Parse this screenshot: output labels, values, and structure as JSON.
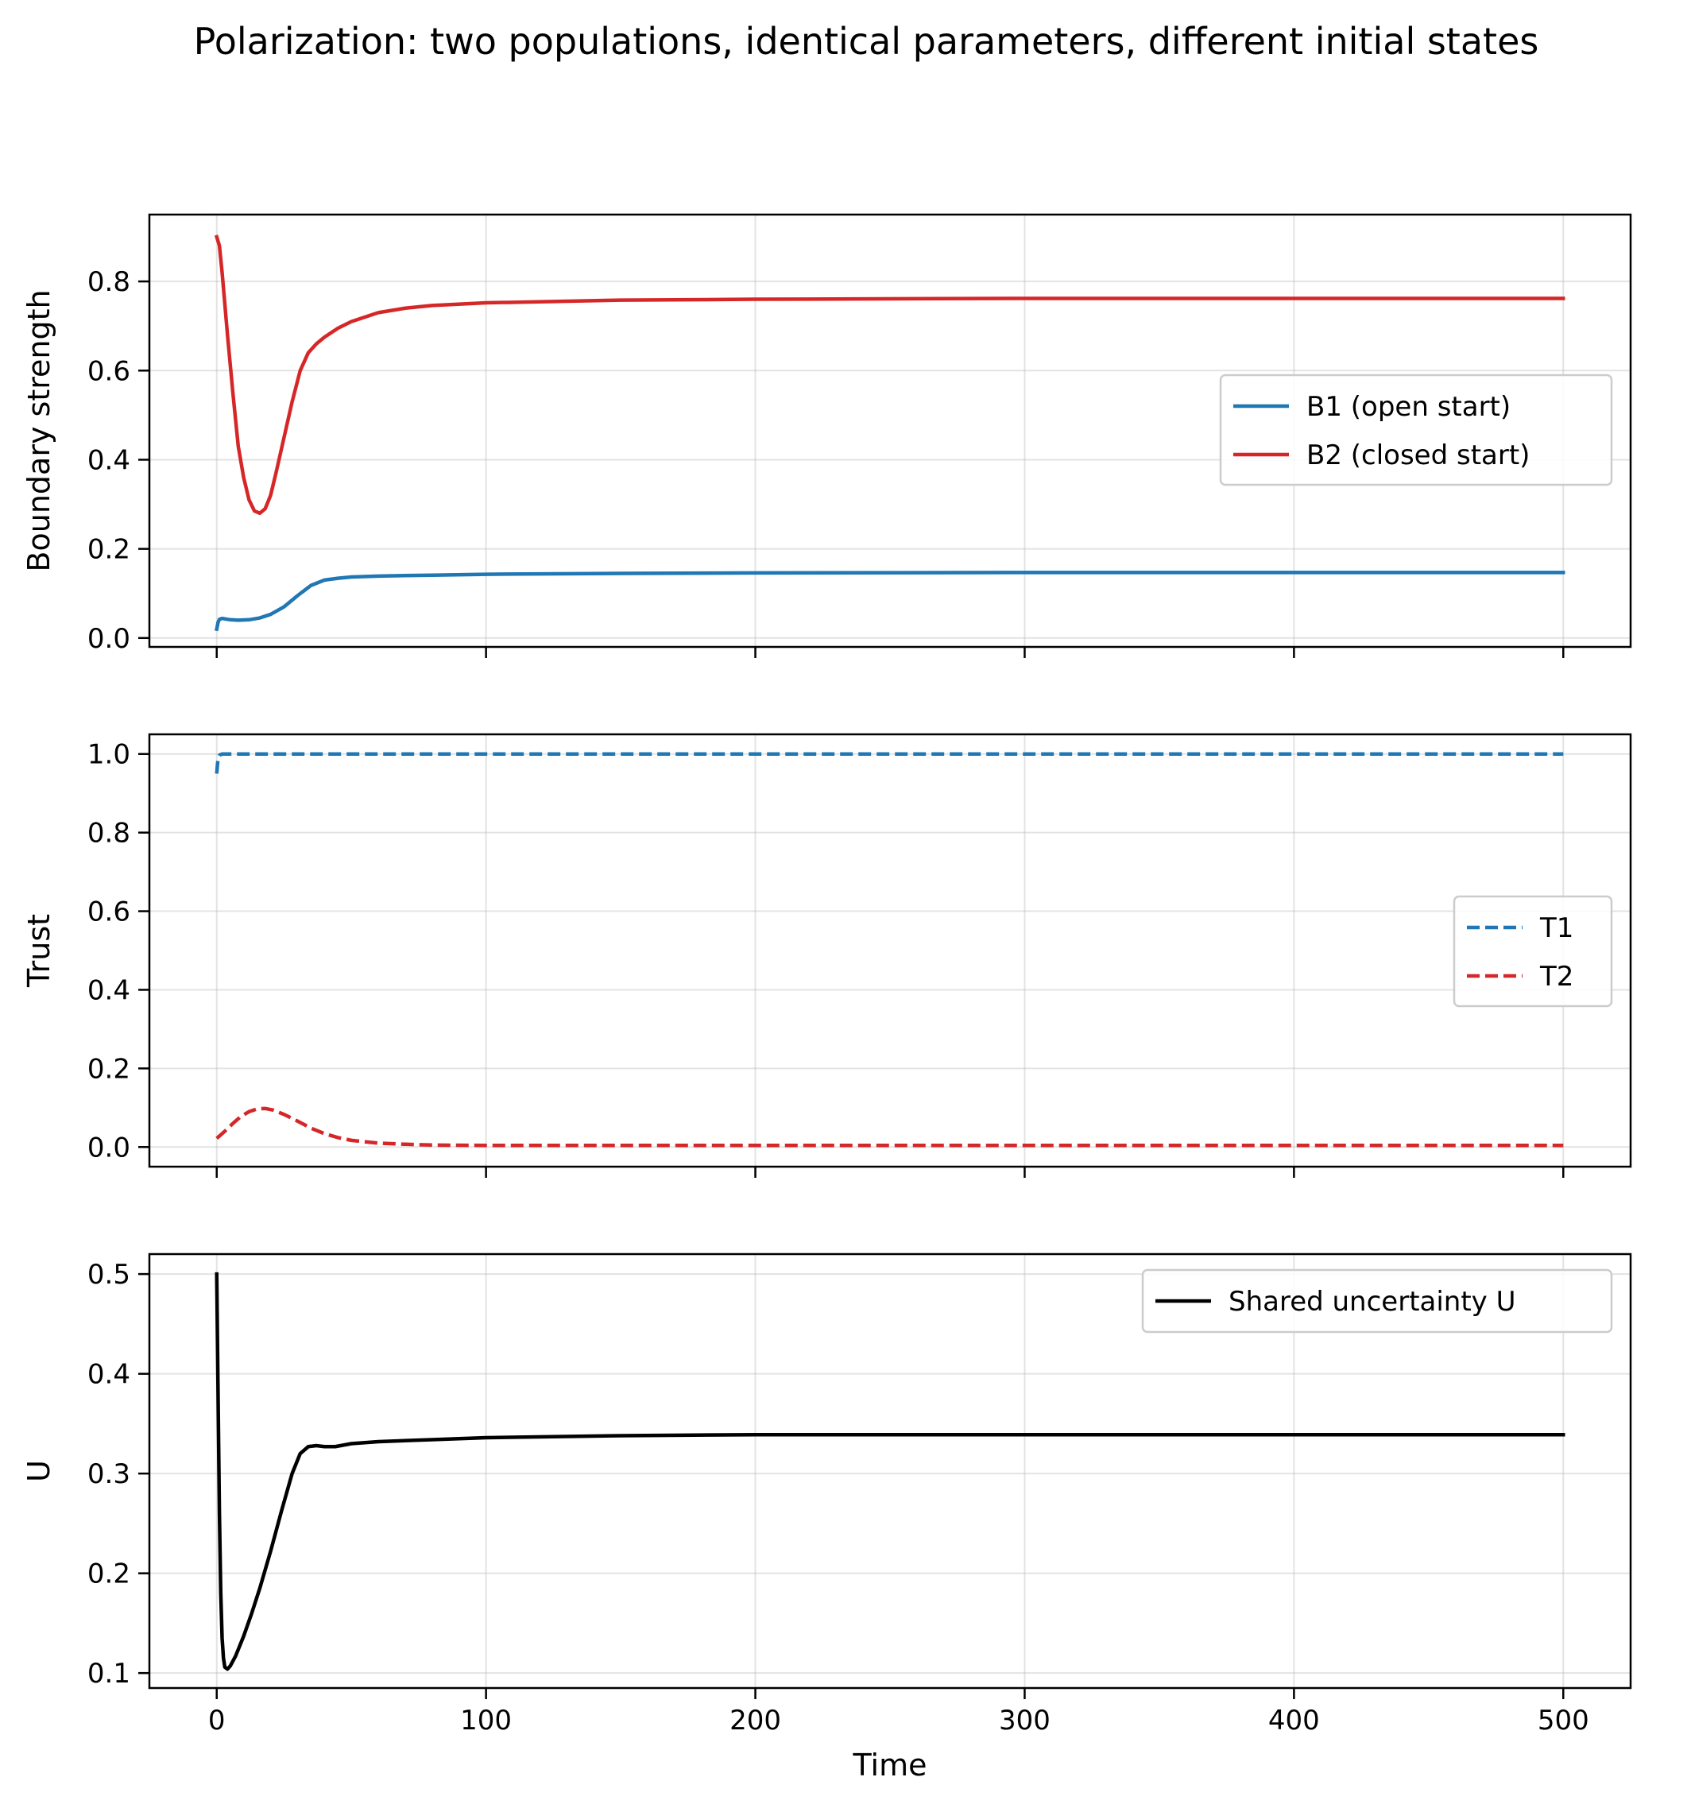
{
  "figure": {
    "title": "Polarization: two populations, identical parameters, different initial states"
  },
  "chart_data": [
    {
      "type": "line",
      "title": "",
      "xlabel": "",
      "ylabel": "Boundary strength",
      "xlim": [
        -25,
        525
      ],
      "ylim": [
        -0.02,
        0.95
      ],
      "xticks": [
        0,
        100,
        200,
        300,
        400,
        500
      ],
      "xtick_labels_visible": false,
      "yticks": [
        0.0,
        0.2,
        0.4,
        0.6,
        0.8
      ],
      "ytick_labels": [
        "0.0",
        "0.2",
        "0.4",
        "0.6",
        "0.8"
      ],
      "grid": true,
      "legend": "center-right",
      "series": [
        {
          "name": "B1 (open start)",
          "color": "#1f77b4",
          "style": "solid",
          "x": [
            0,
            0.5,
            1,
            2,
            3,
            5,
            8,
            12,
            16,
            20,
            25,
            30,
            35,
            40,
            45,
            50,
            60,
            80,
            100,
            150,
            200,
            300,
            400,
            500
          ],
          "y": [
            0.02,
            0.035,
            0.042,
            0.044,
            0.043,
            0.041,
            0.04,
            0.041,
            0.045,
            0.053,
            0.07,
            0.095,
            0.118,
            0.13,
            0.134,
            0.137,
            0.139,
            0.141,
            0.143,
            0.145,
            0.146,
            0.147,
            0.147,
            0.147
          ]
        },
        {
          "name": "B2 (closed start)",
          "color": "#d62728",
          "style": "solid",
          "x": [
            0,
            1,
            2,
            4,
            6,
            8,
            10,
            12,
            14,
            16,
            18,
            20,
            22,
            25,
            28,
            31,
            34,
            37,
            40,
            45,
            50,
            60,
            70,
            80,
            100,
            150,
            200,
            300,
            400,
            500
          ],
          "y": [
            0.9,
            0.88,
            0.82,
            0.68,
            0.55,
            0.43,
            0.36,
            0.31,
            0.285,
            0.28,
            0.29,
            0.32,
            0.37,
            0.45,
            0.53,
            0.6,
            0.64,
            0.66,
            0.675,
            0.695,
            0.71,
            0.73,
            0.74,
            0.746,
            0.752,
            0.758,
            0.76,
            0.762,
            0.762,
            0.762
          ]
        }
      ]
    },
    {
      "type": "line",
      "title": "",
      "xlabel": "",
      "ylabel": "Trust",
      "xlim": [
        -25,
        525
      ],
      "ylim": [
        -0.05,
        1.05
      ],
      "xticks": [
        0,
        100,
        200,
        300,
        400,
        500
      ],
      "xtick_labels_visible": false,
      "yticks": [
        0.0,
        0.2,
        0.4,
        0.6,
        0.8,
        1.0
      ],
      "ytick_labels": [
        "0.0",
        "0.2",
        "0.4",
        "0.6",
        "0.8",
        "1.0"
      ],
      "grid": true,
      "legend": "center-right",
      "series": [
        {
          "name": "T1",
          "color": "#1f77b4",
          "style": "dashed",
          "x": [
            0,
            0.3,
            0.6,
            1,
            2,
            5,
            50,
            100,
            200,
            300,
            400,
            500
          ],
          "y": [
            0.95,
            0.975,
            0.99,
            0.997,
            1.0,
            1.0,
            1.0,
            1.0,
            1.0,
            1.0,
            1.0,
            1.0
          ]
        },
        {
          "name": "T2",
          "color": "#d62728",
          "style": "dashed",
          "x": [
            0,
            3,
            6,
            9,
            12,
            15,
            18,
            21,
            25,
            30,
            35,
            40,
            45,
            50,
            60,
            70,
            80,
            100,
            150,
            200,
            300,
            400,
            500
          ],
          "y": [
            0.022,
            0.04,
            0.06,
            0.078,
            0.09,
            0.097,
            0.098,
            0.094,
            0.083,
            0.066,
            0.048,
            0.034,
            0.024,
            0.017,
            0.01,
            0.007,
            0.005,
            0.004,
            0.004,
            0.004,
            0.004,
            0.004,
            0.004
          ]
        }
      ]
    },
    {
      "type": "line",
      "title": "",
      "xlabel": "Time",
      "ylabel": "U",
      "xlim": [
        -25,
        525
      ],
      "ylim": [
        0.085,
        0.52
      ],
      "xticks": [
        0,
        100,
        200,
        300,
        400,
        500
      ],
      "xtick_labels": [
        "0",
        "100",
        "200",
        "300",
        "400",
        "500"
      ],
      "yticks": [
        0.1,
        0.2,
        0.3,
        0.4,
        0.5
      ],
      "ytick_labels": [
        "0.1",
        "0.2",
        "0.3",
        "0.4",
        "0.5"
      ],
      "grid": true,
      "legend": "top-right",
      "series": [
        {
          "name": "Shared uncertainty U",
          "color": "#000000",
          "style": "solid",
          "x": [
            0,
            0.5,
            1,
            1.5,
            2,
            2.5,
            3,
            4,
            5,
            7,
            10,
            13,
            16,
            20,
            24,
            28,
            31,
            34,
            37,
            40,
            44,
            50,
            60,
            80,
            100,
            150,
            200,
            300,
            400,
            500
          ],
          "y": [
            0.5,
            0.38,
            0.26,
            0.18,
            0.135,
            0.115,
            0.106,
            0.104,
            0.107,
            0.117,
            0.137,
            0.16,
            0.185,
            0.222,
            0.262,
            0.3,
            0.32,
            0.327,
            0.328,
            0.327,
            0.327,
            0.33,
            0.332,
            0.334,
            0.336,
            0.338,
            0.339,
            0.339,
            0.339,
            0.339
          ]
        }
      ]
    }
  ]
}
